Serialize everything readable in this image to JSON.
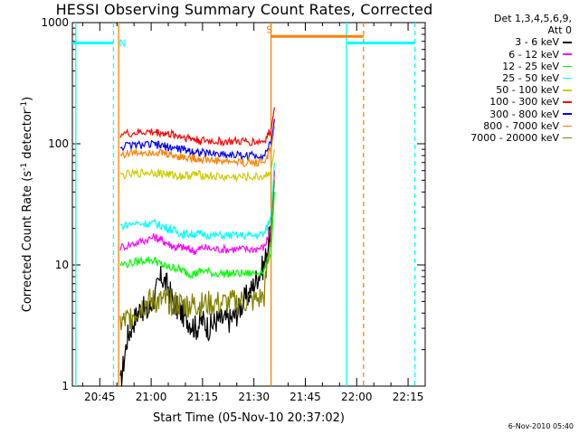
{
  "chart_data": {
    "type": "line",
    "title": "HESSI Observing Summary Count Rates, Corrected",
    "xlabel": "Start Time (05-Nov-10 20:37:02)",
    "ylabel_parts": [
      "Corrected Count Rate (s",
      "-1",
      " detector",
      "-1",
      ")"
    ],
    "yscale": "log",
    "ylim": [
      1,
      1000
    ],
    "yticks": [
      1,
      10,
      100,
      1000
    ],
    "ytick_labels": [
      "1",
      "10",
      "100",
      "1000"
    ],
    "xlim_minutes_after_2030": [
      7,
      110
    ],
    "xticks_minutes": [
      15,
      30,
      45,
      60,
      75,
      90,
      105
    ],
    "xtick_labels": [
      "20:45",
      "21:00",
      "21:15",
      "21:30",
      "21:45",
      "22:00",
      "22:15"
    ],
    "legend_header": [
      "Det 1,3,4,5,6,9,",
      "Att 0"
    ],
    "legend_placement": "right, outside plot",
    "series": [
      {
        "name": "3 - 6 keV",
        "color": "#000000",
        "points": [
          [
            21,
            1
          ],
          [
            23,
            2.5
          ],
          [
            25,
            3.5
          ],
          [
            27,
            4.5
          ],
          [
            29,
            4.0
          ],
          [
            31,
            5.5
          ],
          [
            33,
            8
          ],
          [
            35,
            6.5
          ],
          [
            37,
            4.5
          ],
          [
            39,
            4.0
          ],
          [
            41,
            3.5
          ],
          [
            43,
            3.0
          ],
          [
            45,
            3.5
          ],
          [
            47,
            3.0
          ],
          [
            49,
            3.5
          ],
          [
            51,
            3.5
          ],
          [
            53,
            3.5
          ],
          [
            55,
            4.0
          ],
          [
            57,
            5
          ],
          [
            59,
            6
          ],
          [
            61,
            8
          ],
          [
            63,
            10
          ],
          [
            65,
            20
          ],
          [
            66,
            60
          ]
        ]
      },
      {
        "name": "6 - 12 keV",
        "color": "#ff00ff",
        "points": [
          [
            21,
            14
          ],
          [
            25,
            15
          ],
          [
            28,
            16
          ],
          [
            31,
            17
          ],
          [
            33,
            16
          ],
          [
            35,
            15
          ],
          [
            37,
            14
          ],
          [
            39,
            14
          ],
          [
            41,
            13.5
          ],
          [
            43,
            13
          ],
          [
            45,
            14
          ],
          [
            48,
            13.5
          ],
          [
            51,
            13.5
          ],
          [
            54,
            13.5
          ],
          [
            57,
            13.5
          ],
          [
            60,
            13.5
          ],
          [
            63,
            14
          ],
          [
            65,
            20
          ],
          [
            66,
            60
          ]
        ]
      },
      {
        "name": "12 - 25 keV",
        "color": "#00ff00",
        "points": [
          [
            21,
            10
          ],
          [
            25,
            10.5
          ],
          [
            28,
            11
          ],
          [
            31,
            11
          ],
          [
            33,
            10
          ],
          [
            35,
            9.5
          ],
          [
            37,
            9.5
          ],
          [
            39,
            9
          ],
          [
            41,
            8.5
          ],
          [
            43,
            8.5
          ],
          [
            45,
            9
          ],
          [
            48,
            8.5
          ],
          [
            51,
            8.5
          ],
          [
            54,
            8.5
          ],
          [
            57,
            8.5
          ],
          [
            60,
            8.5
          ],
          [
            63,
            9
          ],
          [
            65,
            13
          ],
          [
            66,
            40
          ]
        ]
      },
      {
        "name": "25 - 50 keV",
        "color": "#00ffff",
        "points": [
          [
            21,
            21
          ],
          [
            25,
            22
          ],
          [
            28,
            22
          ],
          [
            31,
            22
          ],
          [
            33,
            21
          ],
          [
            35,
            20
          ],
          [
            37,
            19
          ],
          [
            39,
            18
          ],
          [
            41,
            18
          ],
          [
            43,
            18
          ],
          [
            45,
            18
          ],
          [
            48,
            17.5
          ],
          [
            51,
            17.5
          ],
          [
            54,
            17.5
          ],
          [
            57,
            17.5
          ],
          [
            60,
            17.5
          ],
          [
            63,
            18
          ],
          [
            65,
            25
          ],
          [
            66,
            70
          ]
        ]
      },
      {
        "name": "50 - 100 keV",
        "color": "#cccc00",
        "points": [
          [
            21,
            55
          ],
          [
            25,
            56
          ],
          [
            28,
            58
          ],
          [
            31,
            58
          ],
          [
            33,
            57
          ],
          [
            35,
            56
          ],
          [
            37,
            55
          ],
          [
            39,
            54
          ],
          [
            41,
            55
          ],
          [
            43,
            56
          ],
          [
            45,
            55
          ],
          [
            48,
            54
          ],
          [
            51,
            53
          ],
          [
            54,
            53
          ],
          [
            57,
            53
          ],
          [
            60,
            53
          ],
          [
            63,
            54
          ],
          [
            65,
            60
          ],
          [
            66,
            90
          ]
        ]
      },
      {
        "name": "100 - 300 keV",
        "color": "#ff0000",
        "points": [
          [
            21,
            120
          ],
          [
            25,
            122
          ],
          [
            28,
            125
          ],
          [
            31,
            125
          ],
          [
            33,
            123
          ],
          [
            35,
            120
          ],
          [
            37,
            118
          ],
          [
            39,
            115
          ],
          [
            41,
            112
          ],
          [
            43,
            108
          ],
          [
            45,
            106
          ],
          [
            48,
            105
          ],
          [
            51,
            104
          ],
          [
            54,
            104
          ],
          [
            57,
            104
          ],
          [
            60,
            104
          ],
          [
            63,
            105
          ],
          [
            65,
            130
          ],
          [
            66,
            200
          ]
        ]
      },
      {
        "name": "300 - 800 keV",
        "color": "#0000ff",
        "points": [
          [
            21,
            95
          ],
          [
            25,
            97
          ],
          [
            28,
            98
          ],
          [
            31,
            98
          ],
          [
            33,
            96
          ],
          [
            35,
            94
          ],
          [
            37,
            92
          ],
          [
            39,
            90
          ],
          [
            41,
            88
          ],
          [
            43,
            86
          ],
          [
            45,
            84
          ],
          [
            48,
            83
          ],
          [
            51,
            82
          ],
          [
            54,
            81
          ],
          [
            57,
            80
          ],
          [
            60,
            80
          ],
          [
            63,
            81
          ],
          [
            65,
            100
          ],
          [
            66,
            160
          ]
        ]
      },
      {
        "name": "800 - 7000 keV",
        "color": "#ff8000",
        "points": [
          [
            21,
            82
          ],
          [
            25,
            84
          ],
          [
            28,
            86
          ],
          [
            31,
            86
          ],
          [
            33,
            84
          ],
          [
            35,
            82
          ],
          [
            37,
            80
          ],
          [
            39,
            78
          ],
          [
            41,
            77
          ],
          [
            43,
            76
          ],
          [
            45,
            74
          ],
          [
            48,
            73
          ],
          [
            51,
            72
          ],
          [
            54,
            71
          ],
          [
            57,
            70
          ],
          [
            60,
            70
          ],
          [
            63,
            71
          ],
          [
            65,
            90
          ],
          [
            66,
            140
          ]
        ]
      },
      {
        "name": "7000 - 20000 keV",
        "color": "#808000",
        "points": [
          [
            21,
            3.3
          ],
          [
            23,
            3.5
          ],
          [
            25,
            4
          ],
          [
            27,
            4.5
          ],
          [
            29,
            5
          ],
          [
            31,
            5
          ],
          [
            33,
            5
          ],
          [
            35,
            5
          ],
          [
            37,
            4.8
          ],
          [
            39,
            4.7
          ],
          [
            41,
            4.7
          ],
          [
            43,
            4.7
          ],
          [
            45,
            4.7
          ],
          [
            48,
            4.8
          ],
          [
            51,
            4.8
          ],
          [
            54,
            4.9
          ],
          [
            57,
            5
          ],
          [
            60,
            5
          ],
          [
            63,
            5.5
          ],
          [
            65,
            20
          ],
          [
            66,
            50
          ]
        ]
      }
    ],
    "annotations": [
      {
        "label": "N",
        "color": "#00ffff",
        "x_minutes": 19,
        "y": 680
      },
      {
        "label": "S",
        "color": "#ff8000",
        "x_minutes": 62,
        "y": 880
      }
    ],
    "night_bars": [
      {
        "color": "#00ffff",
        "x_minutes": [
          7,
          19
        ],
        "y": 680
      },
      {
        "color": "#00ffff",
        "x_minutes": [
          87,
          107
        ],
        "y": 680
      }
    ],
    "saa_bar": {
      "color": "#ff8000",
      "x_minutes": [
        65,
        92
      ],
      "y": 770
    },
    "vlines": [
      {
        "x_minutes": 8,
        "color": "#00ffff",
        "style": "solid"
      },
      {
        "x_minutes": 19,
        "color": "#00ffff",
        "style": "dashed"
      },
      {
        "x_minutes": 87,
        "color": "#00ffff",
        "style": "solid"
      },
      {
        "x_minutes": 107,
        "color": "#00ffff",
        "style": "dashed"
      },
      {
        "x_minutes": 20.5,
        "color": "#ff8000",
        "style": "solid"
      },
      {
        "x_minutes": 65,
        "color": "#ff8000",
        "style": "solid"
      },
      {
        "x_minutes": 92,
        "color": "#ff8000",
        "style": "dashed"
      }
    ],
    "grid": false,
    "timestamp": "6-Nov-2010 05:40"
  }
}
